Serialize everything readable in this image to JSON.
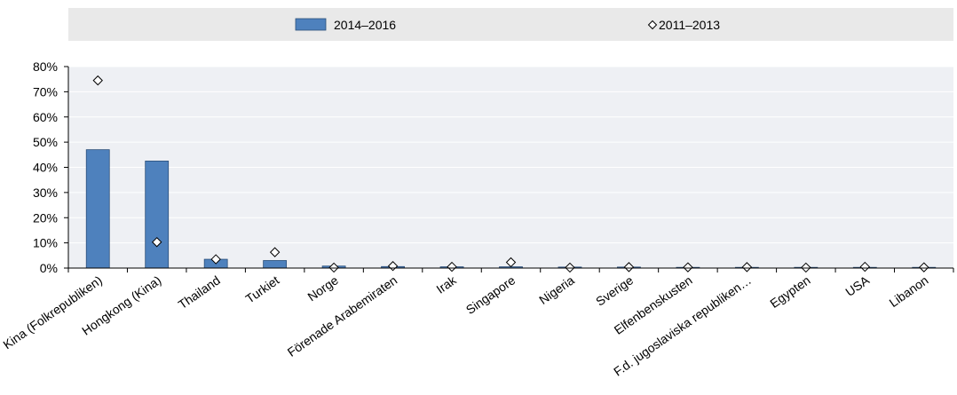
{
  "chart_data": {
    "type": "bar",
    "categories": [
      "Kina (Folkrepubliken)",
      "Hongkong (Kina)",
      "Thailand",
      "Turkiet",
      "Norge",
      "Förenade Arabemiraten",
      "Irak",
      "Singapore",
      "Nigeria",
      "Sverige",
      "Elfenbenskusten",
      "F.d. jugoslaviska republiken…",
      "Egypten",
      "USA",
      "Libanon"
    ],
    "series": [
      {
        "name": "2014–2016",
        "type": "bar",
        "color": "#4e81bd",
        "values": [
          47,
          42.5,
          3.5,
          3,
          0.8,
          0.6,
          0.5,
          0.5,
          0.4,
          0.4,
          0.1,
          0.1,
          0.1,
          0.1,
          0.1
        ]
      },
      {
        "name": "2011–2013",
        "type": "marker",
        "marker": "diamond",
        "values": [
          74.5,
          10.3,
          3.5,
          6.3,
          0.2,
          0.8,
          0.5,
          2.3,
          0.2,
          0.4,
          0.3,
          0.4,
          0.2,
          0.5,
          0.3
        ]
      }
    ],
    "y_ticks": [
      "0%",
      "10%",
      "20%",
      "30%",
      "40%",
      "50%",
      "60%",
      "70%",
      "80%"
    ],
    "ylim": [
      0,
      80
    ],
    "y_unit": "%",
    "grid": true,
    "legend_position": "top"
  },
  "colors": {
    "bar": "#4e81bd",
    "bar_stroke": "#2b4f7a",
    "legend_bg": "#e9e9e9",
    "grid": "#ffffff",
    "marker_fill": "#ffffff",
    "marker_stroke": "#000000"
  }
}
